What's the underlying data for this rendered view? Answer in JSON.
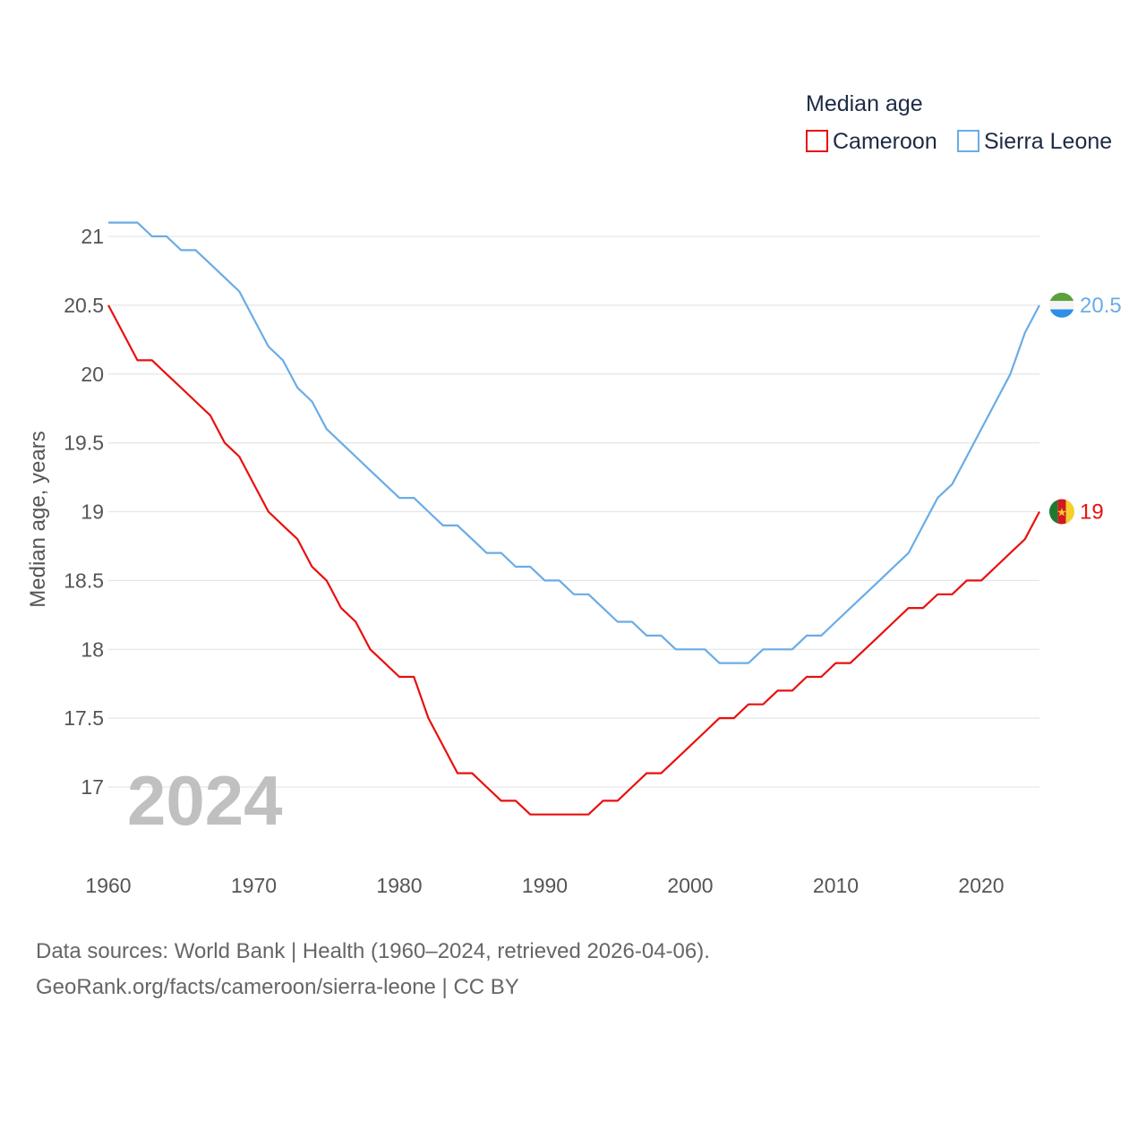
{
  "chart_data": {
    "type": "line",
    "title": "",
    "legend_title": "Median age",
    "xlabel": "",
    "ylabel": "Median age, years",
    "xlim": [
      1960,
      2024
    ],
    "ylim": [
      16.5,
      21.2
    ],
    "x_ticks": [
      1960,
      1970,
      1980,
      1990,
      2000,
      2010,
      2020
    ],
    "y_ticks": [
      17,
      17.5,
      18,
      18.5,
      19,
      19.5,
      20,
      20.5,
      21
    ],
    "y_tick_labels": [
      "17",
      "17.5",
      "18",
      "18.5",
      "19",
      "19.5",
      "20",
      "20.5",
      "21"
    ],
    "x_tick_labels": [
      "1960",
      "1970",
      "1980",
      "1990",
      "2000",
      "2010",
      "2020"
    ],
    "grid": true,
    "legend_position": "top-right",
    "year_overlay": "2024",
    "x": [
      1960,
      1961,
      1962,
      1963,
      1964,
      1965,
      1966,
      1967,
      1968,
      1969,
      1970,
      1971,
      1972,
      1973,
      1974,
      1975,
      1976,
      1977,
      1978,
      1979,
      1980,
      1981,
      1982,
      1983,
      1984,
      1985,
      1986,
      1987,
      1988,
      1989,
      1990,
      1991,
      1992,
      1993,
      1994,
      1995,
      1996,
      1997,
      1998,
      1999,
      2000,
      2001,
      2002,
      2003,
      2004,
      2005,
      2006,
      2007,
      2008,
      2009,
      2010,
      2011,
      2012,
      2013,
      2014,
      2015,
      2016,
      2017,
      2018,
      2019,
      2020,
      2021,
      2022,
      2023,
      2024
    ],
    "series": [
      {
        "name": "Cameroon",
        "color": "#e8100e",
        "end_label": "19",
        "flag": "cameroon-flag-icon",
        "values": [
          20.5,
          20.3,
          20.1,
          20.1,
          20.0,
          19.9,
          19.8,
          19.7,
          19.5,
          19.4,
          19.2,
          19.0,
          18.9,
          18.8,
          18.6,
          18.5,
          18.3,
          18.2,
          18.0,
          17.9,
          17.8,
          17.8,
          17.5,
          17.3,
          17.1,
          17.1,
          17.0,
          16.9,
          16.9,
          16.8,
          16.8,
          16.8,
          16.8,
          16.8,
          16.9,
          16.9,
          17.0,
          17.1,
          17.1,
          17.2,
          17.3,
          17.4,
          17.5,
          17.5,
          17.6,
          17.6,
          17.7,
          17.7,
          17.8,
          17.8,
          17.9,
          17.9,
          18.0,
          18.1,
          18.2,
          18.3,
          18.3,
          18.4,
          18.4,
          18.5,
          18.5,
          18.6,
          18.7,
          18.8,
          19.0
        ]
      },
      {
        "name": "Sierra Leone",
        "color": "#6aace6",
        "end_label": "20.5",
        "flag": "sierra-leone-flag-icon",
        "values": [
          21.1,
          21.1,
          21.1,
          21.0,
          21.0,
          20.9,
          20.9,
          20.8,
          20.7,
          20.6,
          20.4,
          20.2,
          20.1,
          19.9,
          19.8,
          19.6,
          19.5,
          19.4,
          19.3,
          19.2,
          19.1,
          19.1,
          19.0,
          18.9,
          18.9,
          18.8,
          18.7,
          18.7,
          18.6,
          18.6,
          18.5,
          18.5,
          18.4,
          18.4,
          18.3,
          18.2,
          18.2,
          18.1,
          18.1,
          18.0,
          18.0,
          18.0,
          17.9,
          17.9,
          17.9,
          18.0,
          18.0,
          18.0,
          18.1,
          18.1,
          18.2,
          18.3,
          18.4,
          18.5,
          18.6,
          18.7,
          18.9,
          19.1,
          19.2,
          19.4,
          19.6,
          19.8,
          20.0,
          20.3,
          20.5
        ]
      }
    ]
  },
  "footer": {
    "line1": "Data sources: World Bank | Health (1960–2024, retrieved 2026-04-06).",
    "line2": "GeoRank.org/facts/cameroon/sierra-leone | CC BY"
  }
}
